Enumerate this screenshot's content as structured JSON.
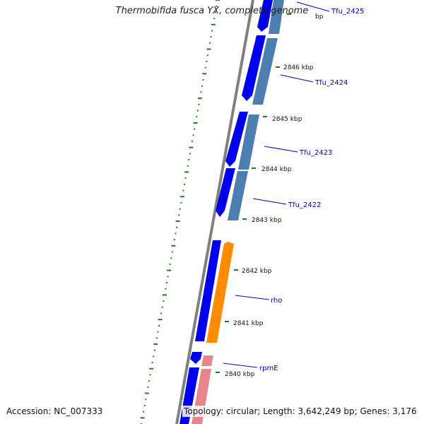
{
  "title": "Thermobifida fusca YX, complete genome",
  "accession": "Accession: NC_007333",
  "topology": "Topology: circular; Length: 3,642,249 bp; Genes: 3,176",
  "colors": {
    "backbone": "#808080",
    "forward_cds": "#0000ee",
    "reverse_cds": "#4a7fb0",
    "rho": "#ff8c00",
    "rpmE": "#e8848c",
    "gc_skew_ticks": "#1a7f1a",
    "label_line": "#0000cc"
  },
  "kbp_labels": [
    "bp",
    "2846 kbp",
    "2845 kbp",
    "2844 kbp",
    "2843 kbp",
    "2842 kbp",
    "2841 kbp",
    "2840 kbp"
  ],
  "genes": [
    {
      "name": "Tfu_2425"
    },
    {
      "name": "Tfu_2424"
    },
    {
      "name": "Tfu_2423"
    },
    {
      "name": "Tfu_2422"
    },
    {
      "name": "rho"
    },
    {
      "name": "rpmE"
    }
  ]
}
